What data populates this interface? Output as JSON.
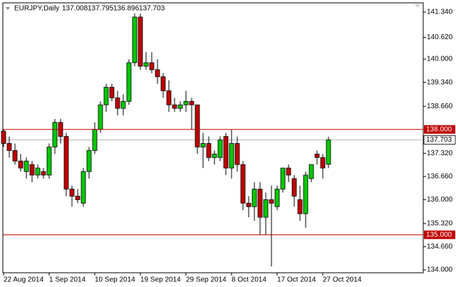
{
  "chart_data": {
    "type": "candlestick",
    "title": "EURJPY,Daily",
    "categories": [
      "22 Aug 2014",
      null,
      null,
      null,
      null,
      null,
      null,
      null,
      "1 Sep 2014",
      null,
      null,
      null,
      null,
      null,
      null,
      null,
      "10 Sep 2014",
      null,
      null,
      null,
      null,
      null,
      null,
      null,
      "19 Sep 2014",
      null,
      null,
      null,
      null,
      null,
      null,
      null,
      "29 Sep 2014",
      null,
      null,
      null,
      null,
      null,
      null,
      null,
      "8 Oct 2014",
      null,
      null,
      null,
      null,
      null,
      null,
      null,
      "17 Oct 2014",
      null,
      null,
      null,
      null,
      null,
      null,
      null,
      "27 Oct 2014",
      null
    ],
    "series": [
      {
        "name": "EURJPY",
        "up_color": "#00c800",
        "down_color": "#c00000",
        "open": [
          137.95,
          137.6,
          137.4,
          137.1,
          136.8,
          137.0,
          136.7,
          136.8,
          136.7,
          137.5,
          138.2,
          137.8,
          136.3,
          136.1,
          135.9,
          136.8,
          137.4,
          138.0,
          138.7,
          139.2,
          138.9,
          138.6,
          138.8,
          139.9,
          141.2,
          139.8,
          139.9,
          139.7,
          139.5,
          139.1,
          138.7,
          138.6,
          138.7,
          138.8,
          138.7,
          137.5,
          137.6,
          137.2,
          137.2,
          137.8,
          136.9,
          137.6,
          137.0,
          135.9,
          135.8,
          136.3,
          135.5,
          136.0,
          135.8,
          136.3,
          136.9,
          136.6,
          136.0,
          135.6,
          136.6,
          137.3,
          137.2,
          137.008
        ],
        "high": [
          138.0,
          137.8,
          137.6,
          137.3,
          137.2,
          137.1,
          137.0,
          136.9,
          137.6,
          138.3,
          138.3,
          137.9,
          136.4,
          136.3,
          136.9,
          137.5,
          138.2,
          138.8,
          139.3,
          139.3,
          139.1,
          139.0,
          140.0,
          141.3,
          141.3,
          140.2,
          140.2,
          140.0,
          139.6,
          139.4,
          138.9,
          138.8,
          139.1,
          138.9,
          138.7,
          137.9,
          137.8,
          137.4,
          137.8,
          137.9,
          138.0,
          137.8,
          137.1,
          136.1,
          136.5,
          136.5,
          136.2,
          136.4,
          136.4,
          136.9,
          137.0,
          136.7,
          136.4,
          136.8,
          137.0,
          137.4,
          137.3,
          137.795
        ],
        "low": [
          137.5,
          137.2,
          137.0,
          136.8,
          136.6,
          136.5,
          136.6,
          136.6,
          136.6,
          137.3,
          137.6,
          136.1,
          135.8,
          135.9,
          135.8,
          136.6,
          137.3,
          137.9,
          138.5,
          138.8,
          138.4,
          138.4,
          138.7,
          139.8,
          139.7,
          139.7,
          139.6,
          139.3,
          138.9,
          138.5,
          138.5,
          138.5,
          138.5,
          138.0,
          137.3,
          136.9,
          137.1,
          137.0,
          137.1,
          136.7,
          136.6,
          136.8,
          135.7,
          135.5,
          135.4,
          135.0,
          135.0,
          134.1,
          135.7,
          136.2,
          136.5,
          135.8,
          135.4,
          135.2,
          136.5,
          137.0,
          136.6,
          136.896
        ],
        "close": [
          137.6,
          137.4,
          137.1,
          136.9,
          137.1,
          136.7,
          136.9,
          136.7,
          137.5,
          138.2,
          137.8,
          136.3,
          136.1,
          136.0,
          136.8,
          137.4,
          138.0,
          138.7,
          139.2,
          138.9,
          138.6,
          138.8,
          139.9,
          141.2,
          139.8,
          139.9,
          139.7,
          139.5,
          139.1,
          138.7,
          138.6,
          138.7,
          138.8,
          138.7,
          137.5,
          137.6,
          137.2,
          137.3,
          137.7,
          136.9,
          137.6,
          137.0,
          135.9,
          135.8,
          136.3,
          135.5,
          136.0,
          135.9,
          136.3,
          136.9,
          136.7,
          136.1,
          135.6,
          136.7,
          137.0,
          137.2,
          136.9,
          137.703
        ]
      }
    ],
    "ylim": [
      133.919,
      141.685
    ],
    "yticks": [
      {
        "value": 141.34,
        "label": "141.340"
      },
      {
        "value": 140.62,
        "label": "140.620"
      },
      {
        "value": 140,
        "label": "140.000"
      },
      {
        "value": 139.34,
        "label": "139.340"
      },
      {
        "value": 138.66,
        "label": "138.660"
      },
      {
        "value": 137.32,
        "label": "137.320"
      },
      {
        "value": 136.66,
        "label": "136.660"
      },
      {
        "value": 136,
        "label": "136.000"
      },
      {
        "value": 135.32,
        "label": "135.320"
      },
      {
        "value": 134.66,
        "label": "134.660"
      },
      {
        "value": 134,
        "label": "134.000"
      }
    ],
    "levels": [
      {
        "value": 138,
        "label": "138.000",
        "color": "#c00000"
      },
      {
        "value": 135,
        "label": "135.000",
        "color": "#c00000"
      }
    ],
    "current_price_color": "#b4b4b4",
    "grid": false
  }
}
